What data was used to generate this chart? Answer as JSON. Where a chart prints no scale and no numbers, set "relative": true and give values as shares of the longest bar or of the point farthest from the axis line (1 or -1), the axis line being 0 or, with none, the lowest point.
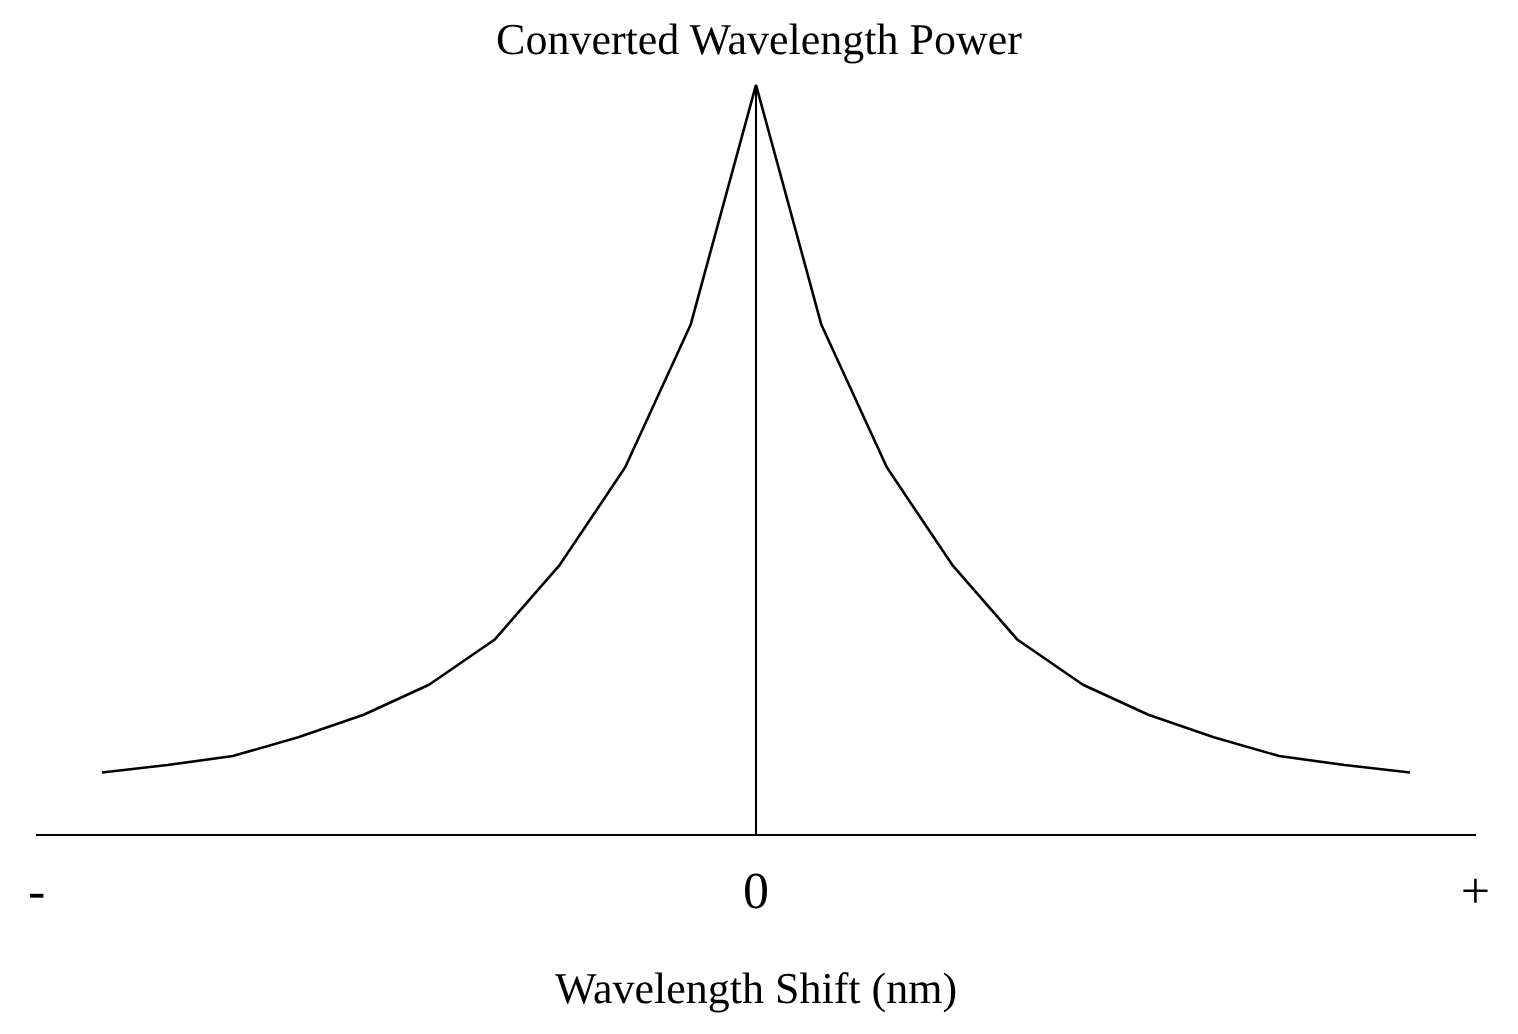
{
  "chart_data": {
    "type": "line",
    "title": "Converted Wavelength Power",
    "xlabel": "Wavelength Shift (nm)",
    "relative": true,
    "categories": [
      "-",
      null,
      null,
      null,
      null,
      null,
      null,
      null,
      null,
      null,
      null,
      "0",
      null,
      null,
      null,
      null,
      null,
      null,
      null,
      null,
      null,
      null,
      "+"
    ],
    "series": [
      {
        "color": "#000000",
        "values": [
          null,
          0.083,
          0.093,
          0.105,
          0.13,
          0.16,
          0.2,
          0.26,
          0.36,
          0.49,
          0.68,
          1,
          0.68,
          0.49,
          0.36,
          0.26,
          0.2,
          0.16,
          0.13,
          0.105,
          0.093,
          0.083,
          null
        ]
      }
    ],
    "ref_lines": [
      {
        "axis": "x",
        "value": "0",
        "color": "#000000"
      }
    ],
    "grid": false,
    "legend": false,
    "marker": "none",
    "line_style": "solid"
  }
}
